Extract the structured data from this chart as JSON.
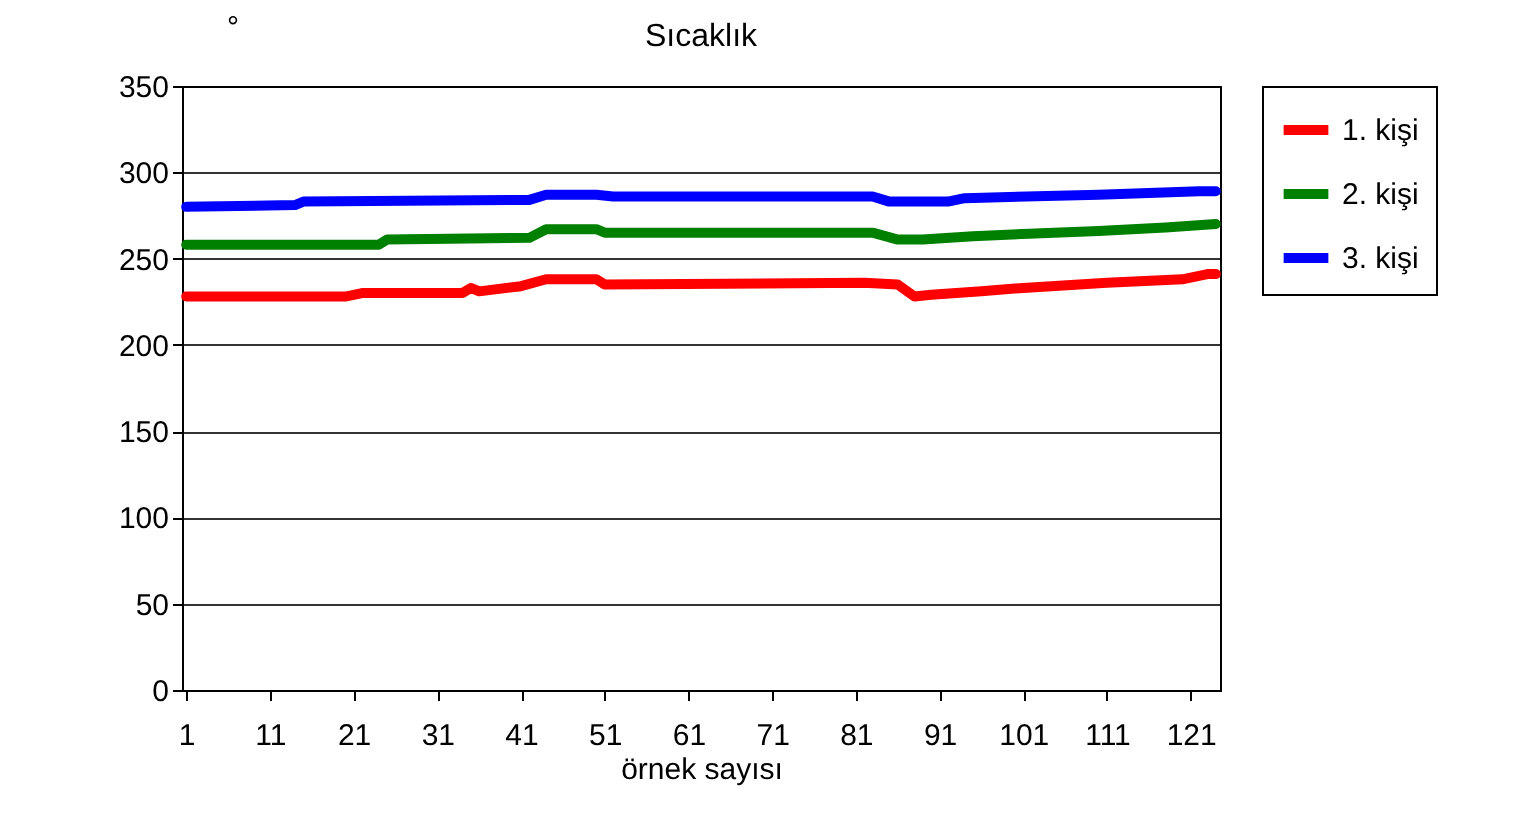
{
  "chart_data": {
    "type": "line",
    "title": "Sıcaklık",
    "xlabel": "örnek sayısı",
    "ylabel": "°",
    "xlim": [
      0.5,
      124.5
    ],
    "xticks": [
      1,
      11,
      21,
      31,
      41,
      51,
      61,
      71,
      81,
      91,
      101,
      111,
      121
    ],
    "ylim": [
      0,
      350
    ],
    "yticks": [
      0,
      50,
      100,
      150,
      200,
      250,
      300,
      350
    ],
    "grid": "y",
    "legend": "right",
    "marker": "none",
    "line_style": "solid",
    "series": [
      {
        "name": "1. kişi",
        "color": "#ff0000",
        "x": [
          1,
          20,
          22,
          34,
          35,
          36,
          41,
          44,
          50,
          51,
          82,
          86,
          88,
          90,
          96,
          101,
          111,
          120,
          123,
          124
        ],
        "values": [
          228,
          228,
          230,
          230,
          233,
          231,
          234,
          238,
          238,
          235,
          236,
          235,
          228,
          229,
          231,
          233,
          236,
          238,
          241,
          241
        ]
      },
      {
        "name": "2. kişi",
        "color": "#008000",
        "x": [
          1,
          24,
          25,
          42,
          44,
          50,
          51,
          83,
          86,
          89,
          95,
          110,
          118,
          124
        ],
        "values": [
          258,
          258,
          261,
          262,
          267,
          267,
          265,
          265,
          261,
          261,
          263,
          266,
          268,
          270
        ]
      },
      {
        "name": "3. kişi",
        "color": "#0000ff",
        "x": [
          1,
          14,
          15,
          42,
          44,
          50,
          52,
          83,
          85,
          92,
          94,
          110,
          122,
          124
        ],
        "values": [
          280,
          281,
          283,
          284,
          287,
          287,
          286,
          286,
          283,
          283,
          285,
          287,
          289,
          289
        ]
      }
    ]
  }
}
